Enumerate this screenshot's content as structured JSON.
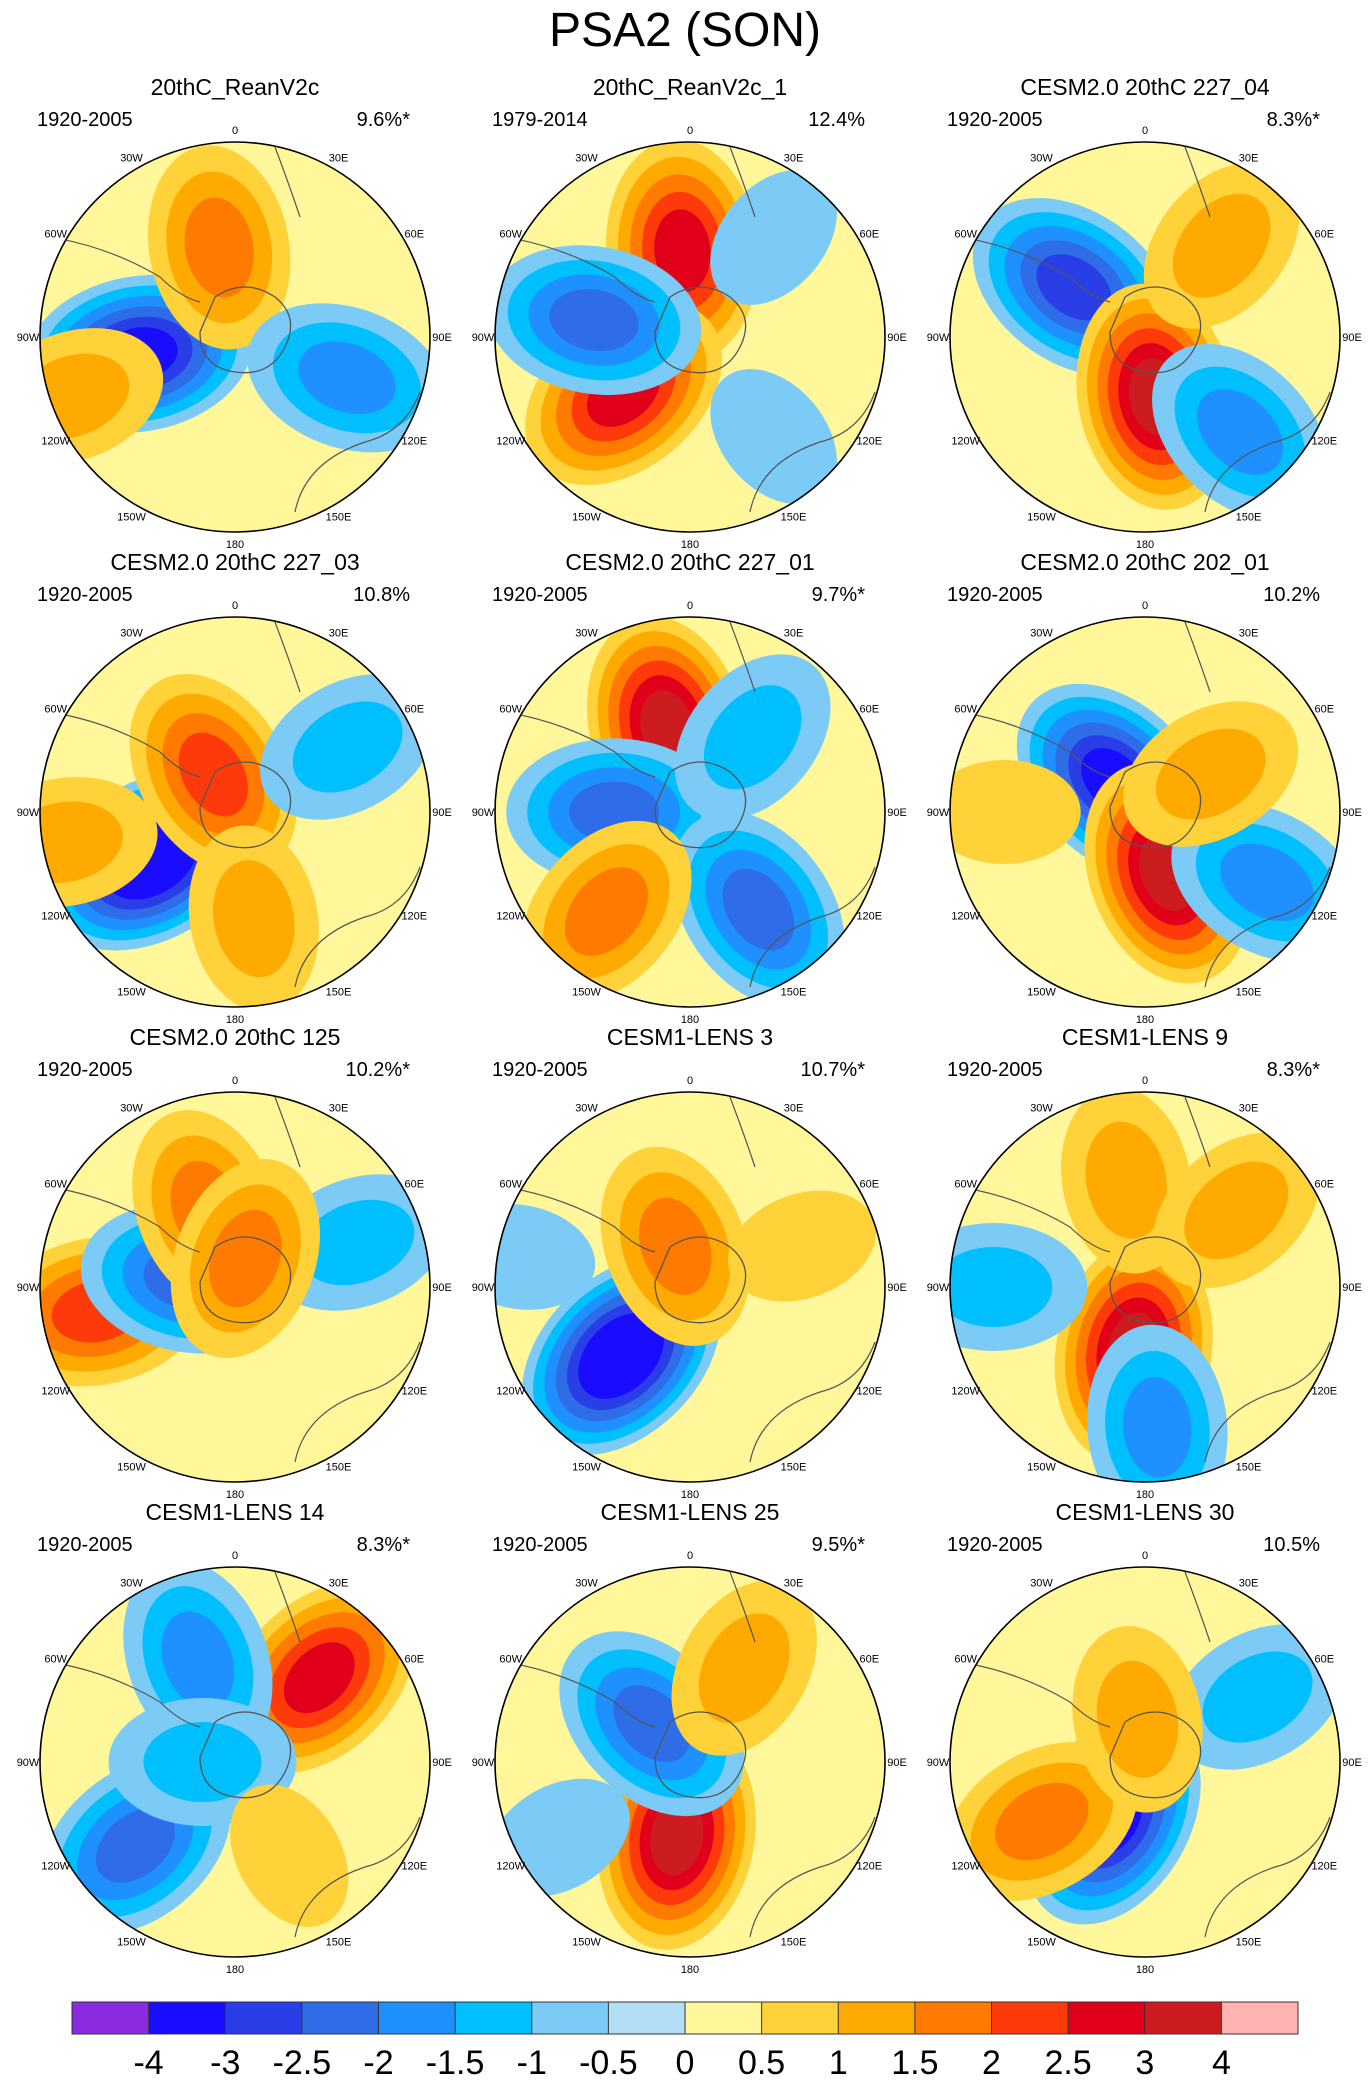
{
  "figure": {
    "title": "PSA2 (SON)"
  },
  "lon_labels": [
    "0",
    "30E",
    "60E",
    "90E",
    "120E",
    "150E",
    "180",
    "150W",
    "120W",
    "90W",
    "60W",
    "30W"
  ],
  "colorbar": {
    "colors": [
      "#8a2be2",
      "#1a0dff",
      "#2a3ee8",
      "#2f6de8",
      "#1e90ff",
      "#00bfff",
      "#7ccaf6",
      "#b3def5",
      "#fff79a",
      "#ffd23a",
      "#ffaa00",
      "#ff7a00",
      "#ff3a0a",
      "#e0001a",
      "#cc1c20",
      "#ffb3b3"
    ],
    "tick_labels": [
      "-4",
      "-3",
      "-2.5",
      "-2",
      "-1.5",
      "-1",
      "-0.5",
      "0",
      "0.5",
      "1",
      "1.5",
      "2",
      "2.5",
      "3",
      "4"
    ]
  },
  "chart_data": [
    {
      "type": "heatmap",
      "title": "20thC_ReanV2c",
      "period": "1920-2005",
      "variance": "9.6%*",
      "centers": [
        {
          "lon": -100,
          "colat": 45,
          "value": -3.0
        },
        {
          "lon": -10,
          "colat": 42,
          "value": 1.5
        },
        {
          "lon": 110,
          "colat": 55,
          "value": -1.5
        },
        {
          "lon": -110,
          "colat": 80,
          "value": 1.0
        }
      ]
    },
    {
      "type": "heatmap",
      "title": "20thC_ReanV2c_1",
      "period": "1979-2014",
      "variance": "12.4%",
      "centers": [
        {
          "lon": -5,
          "colat": 40,
          "value": 2.5
        },
        {
          "lon": -130,
          "colat": 40,
          "value": 2.5
        },
        {
          "lon": -80,
          "colat": 45,
          "value": -2.0
        },
        {
          "lon": 40,
          "colat": 60,
          "value": -0.5
        },
        {
          "lon": 140,
          "colat": 60,
          "value": -0.5
        }
      ]
    },
    {
      "type": "heatmap",
      "title": "CESM2.0 20thC 227_04",
      "period": "1920-2005",
      "variance": "8.3%*",
      "centers": [
        {
          "lon": -55,
          "colat": 40,
          "value": -2.5
        },
        {
          "lon": 170,
          "colat": 28,
          "value": 3.0
        },
        {
          "lon": 135,
          "colat": 62,
          "value": -1.5
        },
        {
          "lon": 40,
          "colat": 55,
          "value": 1.0
        }
      ]
    },
    {
      "type": "heatmap",
      "title": "CESM2.0 20thC 227_03",
      "period": "1920-2005",
      "variance": "10.8%",
      "centers": [
        {
          "lon": -120,
          "colat": 45,
          "value": -3.5
        },
        {
          "lon": -30,
          "colat": 20,
          "value": 2.0
        },
        {
          "lon": 60,
          "colat": 60,
          "value": -1.0
        },
        {
          "lon": -100,
          "colat": 80,
          "value": 1.0
        },
        {
          "lon": 170,
          "colat": 50,
          "value": 1.0
        }
      ]
    },
    {
      "type": "heatmap",
      "title": "CESM2.0 20thC 227_01",
      "period": "1920-2005",
      "variance": "9.7%*",
      "centers": [
        {
          "lon": -15,
          "colat": 40,
          "value": 3.0
        },
        {
          "lon": -90,
          "colat": 35,
          "value": -2.0
        },
        {
          "lon": 145,
          "colat": 55,
          "value": -2.0
        },
        {
          "lon": 40,
          "colat": 45,
          "value": -1.0
        },
        {
          "lon": -140,
          "colat": 60,
          "value": 1.5
        }
      ]
    },
    {
      "type": "heatmap",
      "title": "CESM2.0 20thC 202_01",
      "period": "1920-2005",
      "variance": "10.2%",
      "centers": [
        {
          "lon": -45,
          "colat": 20,
          "value": -3.0
        },
        {
          "lon": 160,
          "colat": 30,
          "value": 3.0
        },
        {
          "lon": 120,
          "colat": 65,
          "value": -1.5
        },
        {
          "lon": 60,
          "colat": 35,
          "value": 1.0
        },
        {
          "lon": -90,
          "colat": 65,
          "value": 0.5
        }
      ]
    },
    {
      "type": "heatmap",
      "title": "CESM2.0 20thC 125",
      "period": "1920-2005",
      "variance": "10.2%*",
      "centers": [
        {
          "lon": -100,
          "colat": 65,
          "value": 2.0
        },
        {
          "lon": -80,
          "colat": 22,
          "value": -2.0
        },
        {
          "lon": 70,
          "colat": 60,
          "value": -1.0
        },
        {
          "lon": -20,
          "colat": 38,
          "value": 1.5
        },
        {
          "lon": 20,
          "colat": 14,
          "value": 1.5
        }
      ]
    },
    {
      "type": "heatmap",
      "title": "CESM1-LENS 3",
      "period": "1920-2005",
      "variance": "10.7%*",
      "centers": [
        {
          "lon": -135,
          "colat": 45,
          "value": -3.5
        },
        {
          "lon": -20,
          "colat": 20,
          "value": 1.5
        },
        {
          "lon": 70,
          "colat": 55,
          "value": 0.5
        },
        {
          "lon": -80,
          "colat": 80,
          "value": -0.5
        }
      ]
    },
    {
      "type": "heatmap",
      "title": "CESM1-LENS 9",
      "period": "1920-2005",
      "variance": "8.3%*",
      "centers": [
        {
          "lon": -170,
          "colat": 30,
          "value": 3.0
        },
        {
          "lon": -10,
          "colat": 50,
          "value": 1.0
        },
        {
          "lon": 50,
          "colat": 55,
          "value": 1.0
        },
        {
          "lon": -90,
          "colat": 70,
          "value": -1.0
        },
        {
          "lon": 175,
          "colat": 65,
          "value": -1.5
        }
      ]
    },
    {
      "type": "heatmap",
      "title": "CESM1-LENS 14",
      "period": "1920-2005",
      "variance": "8.3%*",
      "centers": [
        {
          "lon": 45,
          "colat": 55,
          "value": 2.5
        },
        {
          "lon": -20,
          "colat": 50,
          "value": -1.5
        },
        {
          "lon": -130,
          "colat": 60,
          "value": -2.0
        },
        {
          "lon": -90,
          "colat": 15,
          "value": -1.0
        },
        {
          "lon": 150,
          "colat": 50,
          "value": 0.5
        }
      ]
    },
    {
      "type": "heatmap",
      "title": "CESM1-LENS 25",
      "period": "1920-2005",
      "variance": "9.5%*",
      "centers": [
        {
          "lon": -170,
          "colat": 35,
          "value": 3.0
        },
        {
          "lon": -45,
          "colat": 25,
          "value": -2.0
        },
        {
          "lon": 30,
          "colat": 50,
          "value": 1.0
        },
        {
          "lon": -120,
          "colat": 70,
          "value": -0.5
        }
      ]
    },
    {
      "type": "heatmap",
      "title": "CESM1-LENS 30",
      "period": "1920-2005",
      "variance": "10.5%",
      "centers": [
        {
          "lon": -150,
          "colat": 30,
          "value": -3.0
        },
        {
          "lon": -120,
          "colat": 55,
          "value": 1.5
        },
        {
          "lon": 60,
          "colat": 60,
          "value": -1.0
        },
        {
          "lon": -10,
          "colat": 20,
          "value": 1.0
        }
      ]
    }
  ]
}
